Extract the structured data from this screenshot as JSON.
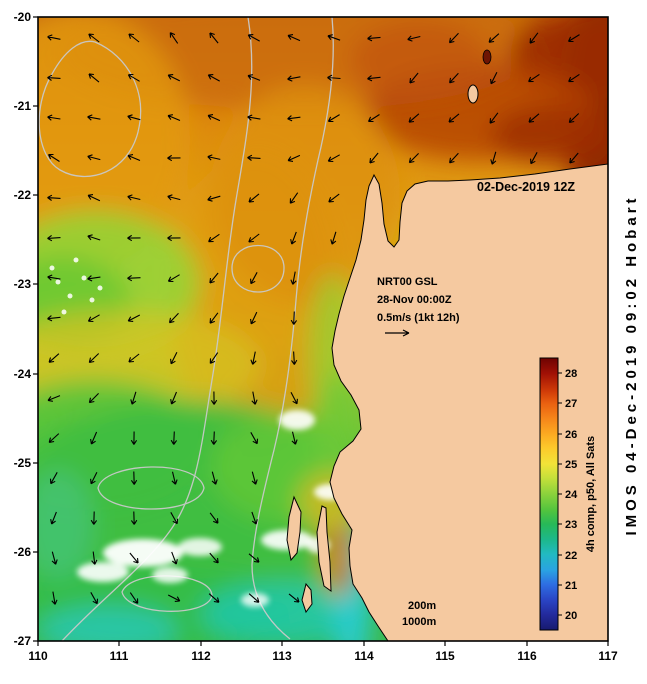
{
  "annotations": {
    "datetime": "02-Dec-2019 12Z",
    "product": "NRT00 GSL",
    "analysis_time": "28-Nov 00:00Z",
    "vector_scale": "0.5m/s (1kt 12h)",
    "depth_200": "200m",
    "depth_1000": "1000m"
  },
  "credit": "IMOS 04-Dec-2019 09:02 Hobart",
  "colorbar": {
    "label": "4h comp, p50, All Sats",
    "ticks": [
      "28",
      "27",
      "26",
      "25",
      "24",
      "23",
      "22",
      "21",
      "20"
    ]
  },
  "axes": {
    "lat": [
      "-20",
      "-21",
      "-22",
      "-23",
      "-24",
      "-25",
      "-26",
      "-27"
    ],
    "lon": [
      "110",
      "111",
      "112",
      "113",
      "114",
      "115",
      "116",
      "117"
    ]
  },
  "colors": {
    "land": "#f5c9a0",
    "contour": "#c9c9c9",
    "frame": "#000000",
    "colorbar_label": "#20208c"
  }
}
